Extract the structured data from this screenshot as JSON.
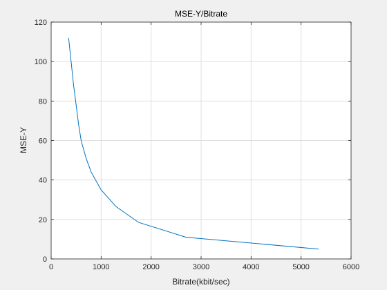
{
  "chart_data": {
    "type": "line",
    "title": "MSE-Y/Bitrate",
    "xlabel": "Bitrate(kbit/sec)",
    "ylabel": "MSE-Y",
    "xlim": [
      0,
      6000
    ],
    "ylim": [
      0,
      120
    ],
    "xticks": [
      0,
      1000,
      2000,
      3000,
      4000,
      5000,
      6000
    ],
    "yticks": [
      0,
      20,
      40,
      60,
      80,
      100,
      120
    ],
    "grid": true,
    "line_color": "#0072BD",
    "series": [
      {
        "x": [
          350,
          400,
          450,
          500,
          550,
          600,
          700,
          800,
          1000,
          1300,
          1750,
          2700,
          5350
        ],
        "y": [
          112,
          100,
          88,
          78,
          68,
          60,
          51,
          44,
          35,
          26.5,
          18.5,
          11,
          5
        ]
      }
    ]
  }
}
